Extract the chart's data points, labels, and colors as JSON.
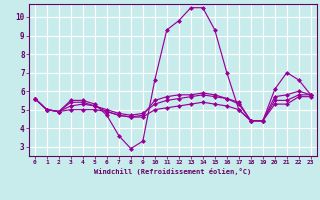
{
  "title": "",
  "xlabel": "Windchill (Refroidissement éolien,°C)",
  "ylabel": "",
  "background_color": "#c8ecec",
  "grid_color": "#b0d8d8",
  "line_color": "#990099",
  "xlim": [
    -0.5,
    23.5
  ],
  "ylim": [
    2.5,
    10.7
  ],
  "yticks": [
    3,
    4,
    5,
    6,
    7,
    8,
    9,
    10
  ],
  "xticks": [
    0,
    1,
    2,
    3,
    4,
    5,
    6,
    7,
    8,
    9,
    10,
    11,
    12,
    13,
    14,
    15,
    16,
    17,
    18,
    19,
    20,
    21,
    22,
    23
  ],
  "lines": [
    {
      "x": [
        0,
        1,
        2,
        3,
        4,
        5,
        6,
        7,
        8,
        9,
        10,
        11,
        12,
        13,
        14,
        15,
        16,
        17,
        18,
        19,
        20,
        21,
        22,
        23
      ],
      "y": [
        5.6,
        5.0,
        4.9,
        5.5,
        5.5,
        5.3,
        4.7,
        3.6,
        2.9,
        3.3,
        6.6,
        9.3,
        9.8,
        10.5,
        10.5,
        9.3,
        7.0,
        5.0,
        4.4,
        4.4,
        6.1,
        7.0,
        6.6,
        5.8
      ]
    },
    {
      "x": [
        0,
        1,
        2,
        3,
        4,
        5,
        6,
        7,
        8,
        9,
        10,
        11,
        12,
        13,
        14,
        15,
        16,
        17,
        18,
        19,
        20,
        21,
        22,
        23
      ],
      "y": [
        5.6,
        5.0,
        4.9,
        5.2,
        5.3,
        5.2,
        5.0,
        4.8,
        4.7,
        4.8,
        5.3,
        5.5,
        5.6,
        5.7,
        5.8,
        5.7,
        5.6,
        5.4,
        4.4,
        4.4,
        5.5,
        5.5,
        5.8,
        5.8
      ]
    },
    {
      "x": [
        0,
        1,
        2,
        3,
        4,
        5,
        6,
        7,
        8,
        9,
        10,
        11,
        12,
        13,
        14,
        15,
        16,
        17,
        18,
        19,
        20,
        21,
        22,
        23
      ],
      "y": [
        5.6,
        5.0,
        4.9,
        5.0,
        5.0,
        5.0,
        4.9,
        4.7,
        4.6,
        4.6,
        5.0,
        5.1,
        5.2,
        5.3,
        5.4,
        5.3,
        5.2,
        5.0,
        4.4,
        4.4,
        5.3,
        5.3,
        5.7,
        5.7
      ]
    },
    {
      "x": [
        0,
        1,
        2,
        3,
        4,
        5,
        6,
        7,
        8,
        9,
        10,
        11,
        12,
        13,
        14,
        15,
        16,
        17,
        18,
        19,
        20,
        21,
        22,
        23
      ],
      "y": [
        5.6,
        5.0,
        4.9,
        5.4,
        5.4,
        5.2,
        4.9,
        4.7,
        4.6,
        4.7,
        5.5,
        5.7,
        5.8,
        5.8,
        5.9,
        5.8,
        5.6,
        5.3,
        4.4,
        4.4,
        5.7,
        5.8,
        6.0,
        5.8
      ]
    }
  ]
}
